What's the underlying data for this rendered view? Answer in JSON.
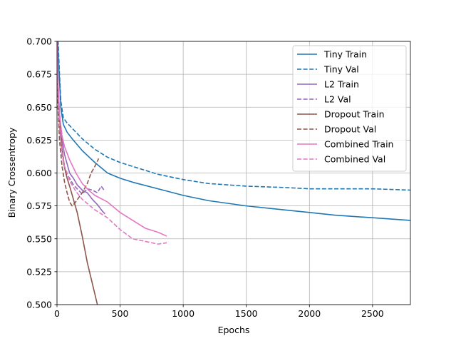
{
  "chart_data": {
    "type": "line",
    "title": "",
    "xlabel": "Epochs",
    "ylabel": "Binary Crossentropy",
    "xlim": [
      0,
      2800
    ],
    "ylim": [
      0.5,
      0.7
    ],
    "grid": true,
    "legend_position": "top-right",
    "xticks": [
      0,
      500,
      1000,
      1500,
      2000,
      2500
    ],
    "yticks": [
      0.5,
      0.525,
      0.55,
      0.575,
      0.6,
      0.625,
      0.65,
      0.675,
      0.7
    ],
    "xtick_labels": [
      "0",
      "500",
      "1000",
      "1500",
      "2000",
      "2500"
    ],
    "ytick_labels": [
      "0.500",
      "0.525",
      "0.550",
      "0.575",
      "0.600",
      "0.625",
      "0.650",
      "0.675",
      "0.700"
    ],
    "series": [
      {
        "name": "Tiny Train",
        "color": "#1f77b4",
        "style": "solid",
        "x": [
          0,
          10,
          20,
          30,
          50,
          80,
          120,
          200,
          300,
          400,
          500,
          600,
          800,
          1000,
          1200,
          1500,
          1800,
          2000,
          2200,
          2500,
          2800
        ],
        "y": [
          0.71,
          0.69,
          0.67,
          0.65,
          0.637,
          0.631,
          0.626,
          0.617,
          0.608,
          0.6,
          0.596,
          0.593,
          0.588,
          0.583,
          0.579,
          0.575,
          0.572,
          0.57,
          0.568,
          0.566,
          0.564
        ]
      },
      {
        "name": "Tiny Val",
        "color": "#1f77b4",
        "style": "dashed",
        "x": [
          0,
          10,
          20,
          30,
          50,
          80,
          120,
          200,
          300,
          400,
          500,
          600,
          800,
          1000,
          1200,
          1500,
          1800,
          2000,
          2200,
          2500,
          2800
        ],
        "y": [
          0.71,
          0.698,
          0.675,
          0.655,
          0.642,
          0.638,
          0.634,
          0.626,
          0.618,
          0.612,
          0.608,
          0.605,
          0.599,
          0.595,
          0.592,
          0.59,
          0.589,
          0.588,
          0.588,
          0.588,
          0.587
        ]
      },
      {
        "name": "L2 Train",
        "color": "#9467bd",
        "style": "solid",
        "x": [
          0,
          10,
          20,
          40,
          60,
          80,
          100,
          130,
          160,
          200,
          240,
          280,
          320,
          360,
          380
        ],
        "y": [
          0.7,
          0.665,
          0.645,
          0.625,
          0.614,
          0.607,
          0.6,
          0.596,
          0.591,
          0.587,
          0.585,
          0.58,
          0.576,
          0.571,
          0.569
        ]
      },
      {
        "name": "L2 Val",
        "color": "#9467bd",
        "style": "dashed",
        "x": [
          0,
          10,
          20,
          40,
          60,
          80,
          100,
          130,
          160,
          200,
          240,
          280,
          320,
          350,
          380
        ],
        "y": [
          0.69,
          0.655,
          0.635,
          0.614,
          0.604,
          0.599,
          0.596,
          0.591,
          0.588,
          0.584,
          0.588,
          0.587,
          0.585,
          0.59,
          0.586
        ]
      },
      {
        "name": "Dropout Train",
        "color": "#8c564b",
        "style": "solid",
        "x": [
          0,
          10,
          20,
          40,
          60,
          80,
          100,
          130,
          160,
          200,
          240,
          270,
          300,
          320
        ],
        "y": [
          0.69,
          0.66,
          0.64,
          0.618,
          0.604,
          0.596,
          0.59,
          0.58,
          0.57,
          0.552,
          0.532,
          0.52,
          0.508,
          0.5
        ]
      },
      {
        "name": "Dropout Val",
        "color": "#8c564b",
        "style": "dashed",
        "x": [
          0,
          10,
          20,
          40,
          60,
          80,
          100,
          120,
          140,
          170,
          200,
          240,
          270,
          300,
          330
        ],
        "y": [
          0.67,
          0.645,
          0.625,
          0.605,
          0.593,
          0.585,
          0.578,
          0.575,
          0.577,
          0.581,
          0.585,
          0.592,
          0.6,
          0.605,
          0.611
        ]
      },
      {
        "name": "Combined Train",
        "color": "#e377c2",
        "style": "solid",
        "x": [
          0,
          10,
          20,
          40,
          60,
          80,
          100,
          150,
          200,
          250,
          300,
          400,
          500,
          600,
          700,
          800,
          870
        ],
        "y": [
          0.7,
          0.665,
          0.645,
          0.628,
          0.62,
          0.615,
          0.61,
          0.6,
          0.592,
          0.587,
          0.583,
          0.578,
          0.57,
          0.564,
          0.558,
          0.555,
          0.552
        ]
      },
      {
        "name": "Combined Val",
        "color": "#e377c2",
        "style": "dashed",
        "x": [
          0,
          10,
          20,
          40,
          60,
          80,
          100,
          150,
          200,
          250,
          300,
          400,
          500,
          600,
          700,
          800,
          870
        ],
        "y": [
          0.69,
          0.655,
          0.635,
          0.615,
          0.605,
          0.6,
          0.594,
          0.586,
          0.58,
          0.576,
          0.572,
          0.566,
          0.557,
          0.55,
          0.548,
          0.546,
          0.547
        ]
      }
    ]
  }
}
